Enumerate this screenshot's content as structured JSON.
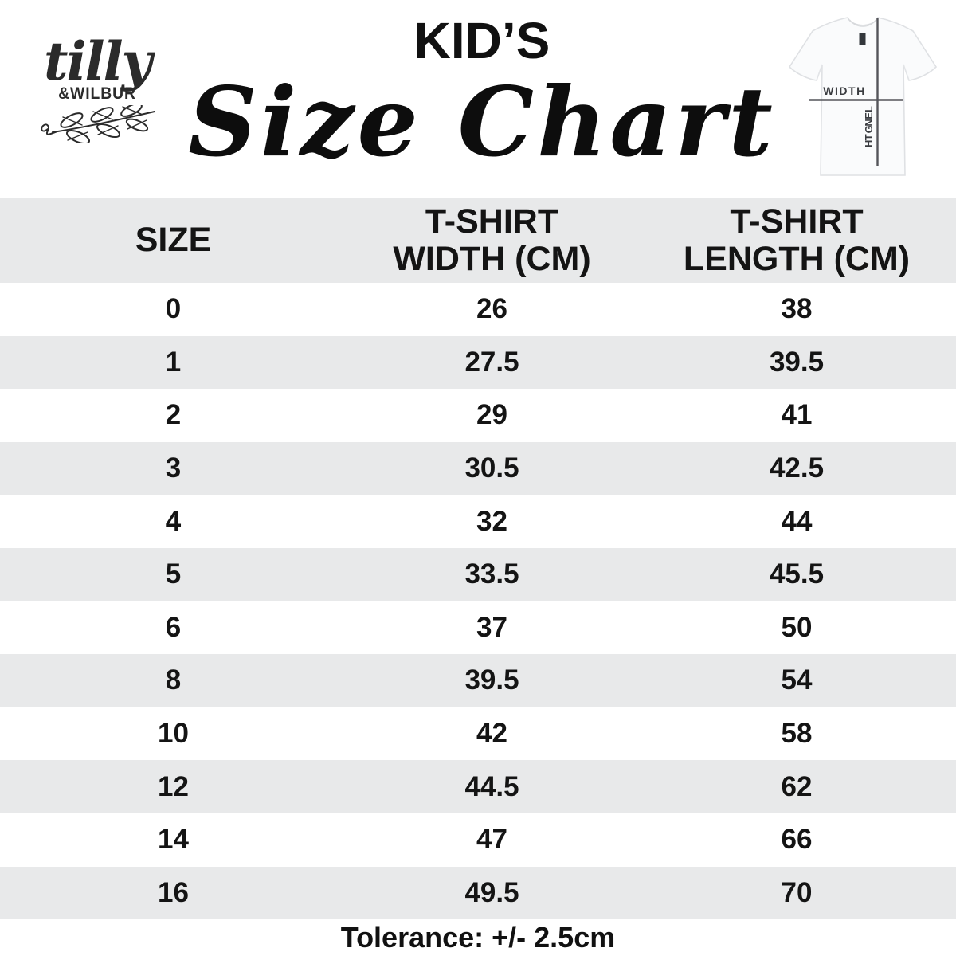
{
  "logo": {
    "script_name": "tilly",
    "caps_name": "&WILBUR"
  },
  "header": {
    "kicker": "KID’S",
    "title": "Size Chart"
  },
  "tee_diagram": {
    "width_label": "WIDTH",
    "length_label": "LENGTH"
  },
  "table": {
    "columns": [
      {
        "label": "SIZE"
      },
      {
        "line1": "T-SHIRT",
        "line2": "WIDTH (CM)"
      },
      {
        "line1": "T-SHIRT",
        "line2": "LENGTH (CM)"
      }
    ],
    "rows": [
      {
        "size": "0",
        "width_cm": "26",
        "length_cm": "38"
      },
      {
        "size": "1",
        "width_cm": "27.5",
        "length_cm": "39.5"
      },
      {
        "size": "2",
        "width_cm": "29",
        "length_cm": "41"
      },
      {
        "size": "3",
        "width_cm": "30.5",
        "length_cm": "42.5"
      },
      {
        "size": "4",
        "width_cm": "32",
        "length_cm": "44"
      },
      {
        "size": "5",
        "width_cm": "33.5",
        "length_cm": "45.5"
      },
      {
        "size": "6",
        "width_cm": "37",
        "length_cm": "50"
      },
      {
        "size": "8",
        "width_cm": "39.5",
        "length_cm": "54"
      },
      {
        "size": "10",
        "width_cm": "42",
        "length_cm": "58"
      },
      {
        "size": "12",
        "width_cm": "44.5",
        "length_cm": "62"
      },
      {
        "size": "14",
        "width_cm": "47",
        "length_cm": "66"
      },
      {
        "size": "16",
        "width_cm": "49.5",
        "length_cm": "70"
      }
    ]
  },
  "footer": {
    "tolerance": "Tolerance: +/- 2.5cm"
  },
  "colors": {
    "row_alt": "#e8e9ea",
    "measure_line": "#54555a",
    "shirt_outline": "#dfe1e4",
    "text": "#141414"
  }
}
